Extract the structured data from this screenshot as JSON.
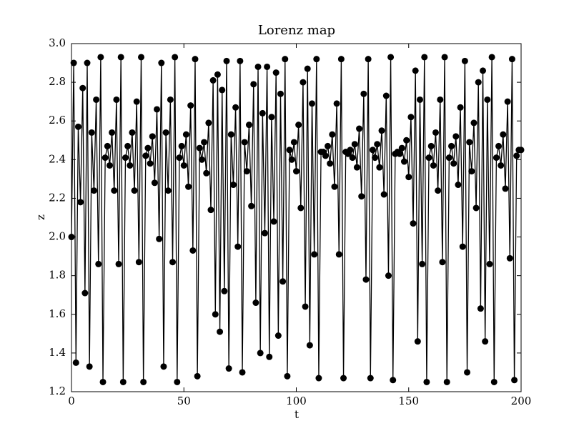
{
  "chart_data": {
    "type": "line",
    "title": "Lorenz map",
    "x_label": "t",
    "y_label": "z",
    "x": [
      0,
      1,
      2,
      3,
      4,
      5,
      6,
      7,
      8,
      9,
      10,
      11,
      12,
      13,
      14,
      15,
      16,
      17,
      18,
      19,
      20,
      21,
      22,
      23,
      24,
      25,
      26,
      27,
      28,
      29,
      30,
      31,
      32,
      33,
      34,
      35,
      36,
      37,
      38,
      39,
      40,
      41,
      42,
      43,
      44,
      45,
      46,
      47,
      48,
      49,
      50,
      51,
      52,
      53,
      54,
      55,
      56,
      57,
      58,
      59,
      60,
      61,
      62,
      63,
      64,
      65,
      66,
      67,
      68,
      69,
      70,
      71,
      72,
      73,
      74,
      75,
      76,
      77,
      78,
      79,
      80,
      81,
      82,
      83,
      84,
      85,
      86,
      87,
      88,
      89,
      90,
      91,
      92,
      93,
      94,
      95,
      96,
      97,
      98,
      99,
      100,
      101,
      102,
      103,
      104,
      105,
      106,
      107,
      108,
      109,
      110,
      111,
      112,
      113,
      114,
      115,
      116,
      117,
      118,
      119,
      120,
      121,
      122,
      123,
      124,
      125,
      126,
      127,
      128,
      129,
      130,
      131,
      132,
      133,
      134,
      135,
      136,
      137,
      138,
      139,
      140,
      141,
      142,
      143,
      144,
      145,
      146,
      147,
      148,
      149,
      150,
      151,
      152,
      153,
      154,
      155,
      156,
      157,
      158,
      159,
      160,
      161,
      162,
      163,
      164,
      165,
      166,
      167,
      168,
      169,
      170,
      171,
      172,
      173,
      174,
      175,
      176,
      177,
      178,
      179,
      180,
      181,
      182,
      183,
      184,
      185,
      186,
      187,
      188,
      189,
      190,
      191,
      192,
      193,
      194,
      195,
      196,
      197,
      198,
      199,
      200
    ],
    "series": [
      {
        "name": "z",
        "color": "#000000",
        "values": [
          2.0,
          2.9,
          1.35,
          2.57,
          2.18,
          2.77,
          1.71,
          2.9,
          1.33,
          2.54,
          2.24,
          2.71,
          1.86,
          2.93,
          1.25,
          2.41,
          2.47,
          2.37,
          2.54,
          2.24,
          2.71,
          1.86,
          2.93,
          1.25,
          2.41,
          2.47,
          2.37,
          2.54,
          2.24,
          2.7,
          1.87,
          2.93,
          1.25,
          2.42,
          2.46,
          2.38,
          2.52,
          2.28,
          2.66,
          1.99,
          2.9,
          1.33,
          2.54,
          2.24,
          2.71,
          1.87,
          2.93,
          1.25,
          2.41,
          2.47,
          2.37,
          2.53,
          2.26,
          2.68,
          1.93,
          2.92,
          1.28,
          2.46,
          2.4,
          2.49,
          2.33,
          2.59,
          2.14,
          2.81,
          1.6,
          2.84,
          1.51,
          2.76,
          1.72,
          2.91,
          1.32,
          2.53,
          2.27,
          2.67,
          1.95,
          2.91,
          1.3,
          2.49,
          2.34,
          2.58,
          2.16,
          2.79,
          1.66,
          2.88,
          1.4,
          2.64,
          2.02,
          2.88,
          1.38,
          2.62,
          2.08,
          2.85,
          1.49,
          2.74,
          1.77,
          2.92,
          1.28,
          2.45,
          2.4,
          2.49,
          2.34,
          2.58,
          2.15,
          2.8,
          1.64,
          2.87,
          1.44,
          2.69,
          1.91,
          2.92,
          1.27,
          2.44,
          2.44,
          2.42,
          2.47,
          2.38,
          2.53,
          2.26,
          2.69,
          1.91,
          2.92,
          1.27,
          2.44,
          2.43,
          2.45,
          2.41,
          2.48,
          2.36,
          2.56,
          2.21,
          2.74,
          1.78,
          2.92,
          1.27,
          2.45,
          2.41,
          2.48,
          2.36,
          2.55,
          2.22,
          2.73,
          1.8,
          2.93,
          1.26,
          2.43,
          2.44,
          2.43,
          2.46,
          2.39,
          2.5,
          2.31,
          2.62,
          2.07,
          2.86,
          1.46,
          2.71,
          1.86,
          2.93,
          1.25,
          2.41,
          2.47,
          2.37,
          2.54,
          2.24,
          2.71,
          1.87,
          2.93,
          1.25,
          2.41,
          2.47,
          2.38,
          2.52,
          2.27,
          2.67,
          1.95,
          2.91,
          1.3,
          2.49,
          2.34,
          2.59,
          2.15,
          2.8,
          1.63,
          2.86,
          1.46,
          2.71,
          1.86,
          2.93,
          1.25,
          2.41,
          2.47,
          2.37,
          2.53,
          2.25,
          2.7,
          1.89,
          2.92,
          1.26,
          2.42,
          2.45,
          2.45
        ]
      }
    ],
    "xlim": [
      0,
      200
    ],
    "xticks": [
      0,
      50,
      100,
      150,
      200
    ],
    "ylim": [
      1.2,
      3.0
    ],
    "yticks": [
      {
        "value": 1.2,
        "label": "1.2"
      },
      {
        "value": 1.4,
        "label": "1.4"
      },
      {
        "value": 1.6,
        "label": "1.6"
      },
      {
        "value": 1.8,
        "label": "1.8"
      },
      {
        "value": 2.0,
        "label": "2.0"
      },
      {
        "value": 2.2,
        "label": "2.2"
      },
      {
        "value": 2.4,
        "label": "2.4"
      },
      {
        "value": 2.6,
        "label": "2.6"
      },
      {
        "value": 2.8,
        "label": "2.8"
      },
      {
        "value": 3.0,
        "label": "3.0"
      }
    ],
    "grid": false
  }
}
